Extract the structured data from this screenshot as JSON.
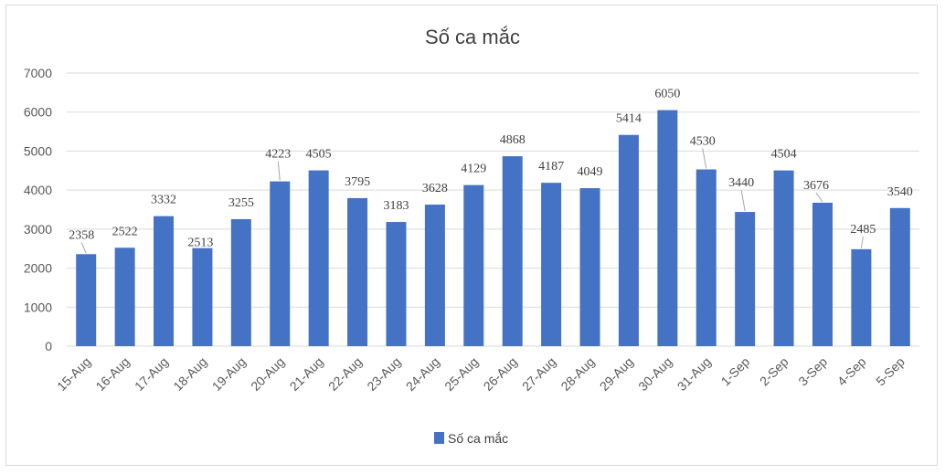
{
  "chart_data": {
    "type": "bar",
    "title": "Số ca mắc",
    "categories": [
      "15-Aug",
      "16-Aug",
      "17-Aug",
      "18-Aug",
      "19-Aug",
      "20-Aug",
      "21-Aug",
      "22-Aug",
      "23-Aug",
      "24-Aug",
      "25-Aug",
      "26-Aug",
      "27-Aug",
      "28-Aug",
      "29-Aug",
      "30-Aug",
      "31-Aug",
      "1-Sep",
      "2-Sep",
      "3-Sep",
      "4-Sep",
      "5-Sep"
    ],
    "series": [
      {
        "name": "Số ca mắc",
        "values": [
          2358,
          2522,
          3332,
          2513,
          3255,
          4223,
          4505,
          3795,
          3183,
          3628,
          4129,
          4868,
          4187,
          4049,
          5414,
          6050,
          4530,
          3440,
          4504,
          3676,
          2485,
          3540
        ]
      }
    ],
    "ylim": [
      0,
      7000
    ],
    "yticks": [
      0,
      1000,
      2000,
      3000,
      4000,
      5000,
      6000,
      7000
    ],
    "grid": true,
    "legend_position": "bottom",
    "bar_color": "#4472c4",
    "grid_color": "#d9d9d9"
  }
}
